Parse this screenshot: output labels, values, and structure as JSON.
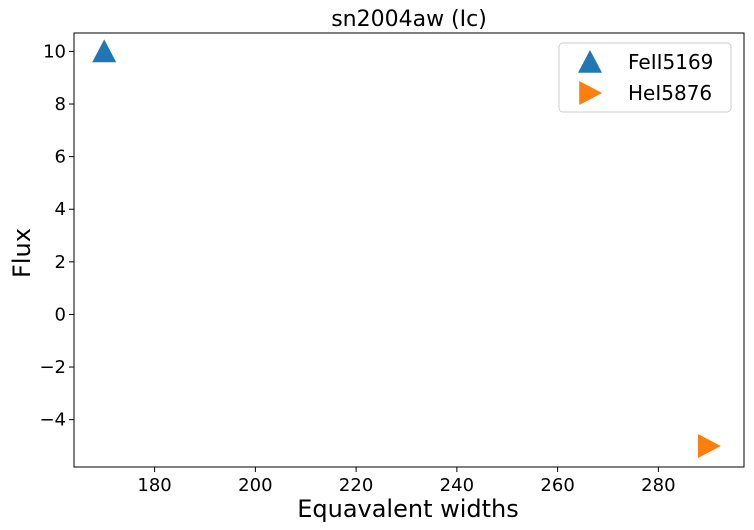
{
  "chart_data": {
    "type": "scatter",
    "title": "sn2004aw (Ic)",
    "xlabel": "Equavalent widths",
    "ylabel": "Flux",
    "xlim": [
      164,
      297
    ],
    "ylim": [
      -5.8,
      10.7
    ],
    "x_ticks": [
      180,
      200,
      220,
      240,
      260,
      280
    ],
    "y_ticks": [
      10,
      8,
      6,
      4,
      2,
      0,
      -2,
      -4
    ],
    "grid": false,
    "legend_position": "top-right",
    "series": [
      {
        "name": "FeII5169",
        "marker": "triangle-up",
        "color": "#1f77b4",
        "points": [
          {
            "x": 170,
            "y": 10
          }
        ]
      },
      {
        "name": "HeI5876",
        "marker": "triangle-right",
        "color": "#ff7f0e",
        "points": [
          {
            "x": 290,
            "y": -5
          }
        ]
      }
    ]
  }
}
